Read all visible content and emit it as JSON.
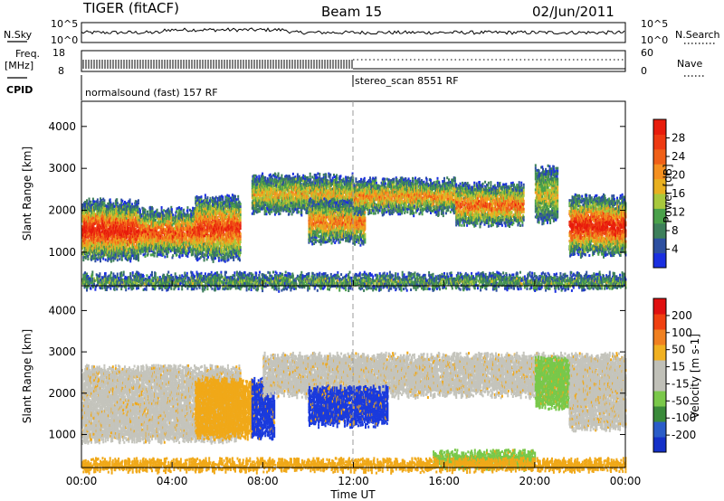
{
  "header": {
    "radar": "TIGER (fitACF)",
    "beam": "Beam 15",
    "date": "02/Jun/2011"
  },
  "noise_panel": {
    "left_label": "N.Sky",
    "right_label": "N.Search",
    "left_top": "10^5",
    "left_bottom": "10^0",
    "right_top": "10^5",
    "right_bottom": "10^0"
  },
  "freq_panel": {
    "left_label_1": "Freq.",
    "left_label_2": "[MHz]",
    "left_top": "18",
    "left_bottom": "8",
    "right_label": "Nave",
    "right_top": "60",
    "right_bottom": "0"
  },
  "cpid_panel": {
    "label": "CPID",
    "mode1": "normalsound (fast) 157 RF",
    "mode2": "stereo_scan 8551 RF"
  },
  "chart_data": [
    {
      "type": "heatmap",
      "name": "power",
      "ylabel": "Slant Range [km]",
      "ylim": [
        200,
        4600
      ],
      "yticks": [
        1000,
        2000,
        3000,
        4000
      ],
      "xlim_hours": [
        0,
        24
      ],
      "colorbar": {
        "label": "Power [dB]",
        "ticks": [
          "4",
          "8",
          "12",
          "16",
          "20",
          "24",
          "28"
        ],
        "colors": [
          "#1a2fe0",
          "#2d4fa0",
          "#3d7f5a",
          "#4aa14a",
          "#a8c83c",
          "#e8b020",
          "#f59020",
          "#f06018",
          "#ee3a12",
          "#e81c0c"
        ]
      },
      "bands": [
        {
          "t0": 0.0,
          "t1": 2.5,
          "r0": 900,
          "r1": 2200,
          "level": 0.85
        },
        {
          "t0": 2.5,
          "t1": 5.0,
          "r0": 1000,
          "r1": 2000,
          "level": 0.7
        },
        {
          "t0": 5.0,
          "t1": 7.0,
          "r0": 900,
          "r1": 2300,
          "level": 0.75
        },
        {
          "t0": 7.5,
          "t1": 12.0,
          "r0": 2000,
          "r1": 2800,
          "level": 0.45
        },
        {
          "t0": 10.0,
          "t1": 12.5,
          "r0": 1300,
          "r1": 2200,
          "level": 0.6
        },
        {
          "t0": 12.0,
          "t1": 16.5,
          "r0": 2000,
          "r1": 2700,
          "level": 0.55
        },
        {
          "t0": 16.5,
          "t1": 19.5,
          "r0": 1700,
          "r1": 2600,
          "level": 0.65
        },
        {
          "t0": 20.0,
          "t1": 21.0,
          "r0": 1800,
          "r1": 3000,
          "level": 0.4
        },
        {
          "t0": 21.5,
          "t1": 24.0,
          "r0": 1000,
          "r1": 2300,
          "level": 0.85
        },
        {
          "t0": 0.0,
          "t1": 24.0,
          "r0": 200,
          "r1": 450,
          "level": 0.25
        }
      ]
    },
    {
      "type": "heatmap",
      "name": "velocity",
      "ylabel": "Slant Range [km]",
      "xlabel": "Time UT",
      "ylim": [
        200,
        4600
      ],
      "yticks": [
        1000,
        2000,
        3000,
        4000
      ],
      "xticks": [
        "00:00",
        "04:00",
        "08:00",
        "12:00",
        "16:00",
        "20:00",
        "00:00"
      ],
      "colorbar": {
        "label": "Velocity [m s-1]",
        "ticks": [
          "200",
          "100",
          "50",
          "15",
          "-15",
          "-50",
          "-100",
          "-200"
        ],
        "colors": [
          "#1430c8",
          "#2a5cc8",
          "#3a8a3a",
          "#7ac84a",
          "#c0c0b8",
          "#c0c0b8",
          "#f0b020",
          "#f08020",
          "#f04010",
          "#e01010"
        ]
      },
      "bands": [
        {
          "t0": 0.0,
          "t1": 7.0,
          "r0": 900,
          "r1": 2600,
          "v": "gray"
        },
        {
          "t0": 5.0,
          "t1": 7.5,
          "r0": 1000,
          "r1": 2300,
          "v": "orange"
        },
        {
          "t0": 7.5,
          "t1": 8.5,
          "r0": 1000,
          "r1": 2300,
          "v": "blue"
        },
        {
          "t0": 8.0,
          "t1": 24.0,
          "r0": 2000,
          "r1": 2900,
          "v": "gray"
        },
        {
          "t0": 10.0,
          "t1": 13.5,
          "r0": 1300,
          "r1": 2100,
          "v": "blue"
        },
        {
          "t0": 20.0,
          "t1": 21.5,
          "r0": 1700,
          "r1": 2800,
          "v": "green"
        },
        {
          "t0": 21.5,
          "t1": 24.0,
          "r0": 1200,
          "r1": 2300,
          "v": "gray"
        },
        {
          "t0": 15.5,
          "t1": 20.0,
          "r0": 250,
          "r1": 550,
          "v": "green"
        },
        {
          "t0": 0.0,
          "t1": 24.0,
          "r0": 200,
          "r1": 350,
          "v": "orange"
        }
      ]
    }
  ]
}
